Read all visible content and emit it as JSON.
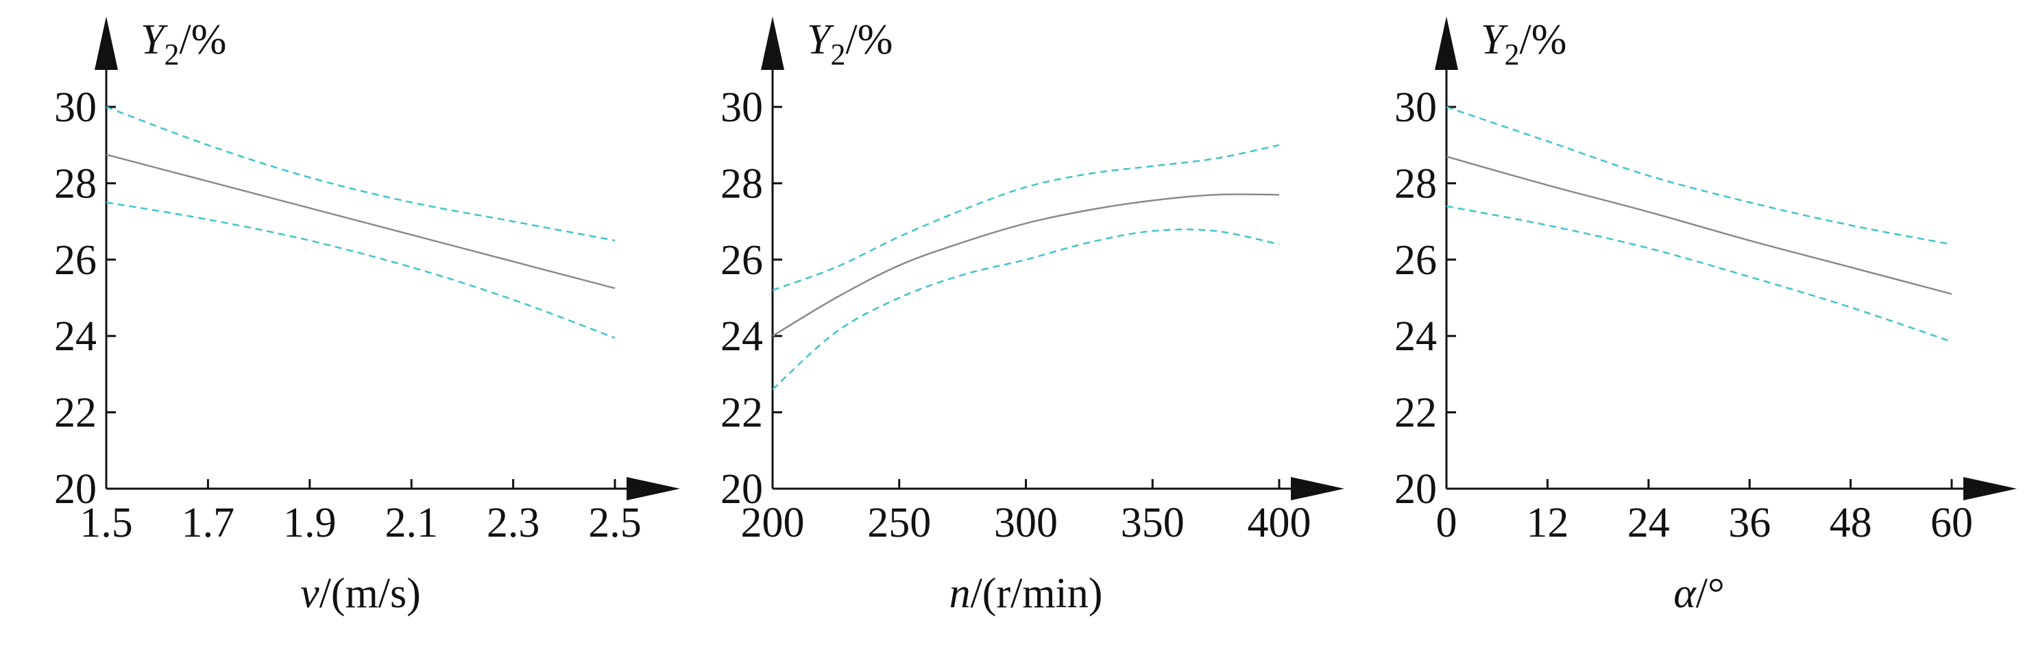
{
  "chart_data": [
    {
      "type": "line",
      "ylabel": "Y2/%",
      "ylabel_parts": {
        "var": "Y",
        "sub": "2",
        "rest": "/%"
      },
      "xlabel": "v/(m/s)",
      "xlabel_parts": {
        "var": "v",
        "rest": "/(m/s)"
      },
      "xlim": [
        1.5,
        2.5
      ],
      "ylim": [
        20,
        30
      ],
      "x_ticks": [
        1.5,
        1.7,
        1.9,
        2.1,
        2.3,
        2.5
      ],
      "x_tick_labels": [
        "1.5",
        "1.7",
        "1.9",
        "2.1",
        "2.3",
        "2.5"
      ],
      "y_ticks": [
        20,
        22,
        24,
        26,
        28,
        30
      ],
      "y_tick_labels": [
        "20",
        "22",
        "24",
        "26",
        "28",
        "30"
      ],
      "x": [
        1.5,
        1.7,
        1.9,
        2.1,
        2.3,
        2.5
      ],
      "series": [
        {
          "role": "mean",
          "color": "#8a8a8a",
          "values": [
            28.75,
            28.05,
            27.35,
            26.65,
            25.95,
            25.25
          ]
        },
        {
          "role": "upper",
          "color": "#3fc4cc",
          "values": [
            30.0,
            29.0,
            28.15,
            27.5,
            27.0,
            26.5
          ]
        },
        {
          "role": "lower",
          "color": "#3fc4cc",
          "values": [
            27.5,
            27.05,
            26.5,
            25.8,
            24.95,
            23.95
          ]
        }
      ]
    },
    {
      "type": "line",
      "ylabel": "Y2/%",
      "ylabel_parts": {
        "var": "Y",
        "sub": "2",
        "rest": "/%"
      },
      "xlabel": "n/(r/min)",
      "xlabel_parts": {
        "var": "n",
        "rest": "/(r/min)"
      },
      "xlim": [
        200,
        400
      ],
      "ylim": [
        20,
        30
      ],
      "x_ticks": [
        200,
        250,
        300,
        350,
        400
      ],
      "x_tick_labels": [
        "200",
        "250",
        "300",
        "350",
        "400"
      ],
      "y_ticks": [
        20,
        22,
        24,
        26,
        28,
        30
      ],
      "y_tick_labels": [
        "20",
        "22",
        "24",
        "26",
        "28",
        "30"
      ],
      "x": [
        200,
        225,
        250,
        275,
        300,
        325,
        350,
        375,
        400
      ],
      "series": [
        {
          "role": "mean",
          "color": "#8a8a8a",
          "values": [
            24.0,
            25.0,
            25.85,
            26.45,
            26.95,
            27.3,
            27.55,
            27.7,
            27.7
          ]
        },
        {
          "role": "upper",
          "color": "#3fc4cc",
          "values": [
            25.2,
            25.8,
            26.6,
            27.3,
            27.9,
            28.25,
            28.45,
            28.65,
            29.0
          ]
        },
        {
          "role": "lower",
          "color": "#3fc4cc",
          "values": [
            22.6,
            24.1,
            25.0,
            25.6,
            26.0,
            26.45,
            26.75,
            26.75,
            26.4
          ]
        }
      ]
    },
    {
      "type": "line",
      "ylabel": "Y2/%",
      "ylabel_parts": {
        "var": "Y",
        "sub": "2",
        "rest": "/%"
      },
      "xlabel": "α/°",
      "xlabel_parts": {
        "var": "α",
        "rest": "/°"
      },
      "xlim": [
        0,
        60
      ],
      "ylim": [
        20,
        30
      ],
      "x_ticks": [
        0,
        12,
        24,
        36,
        48,
        60
      ],
      "x_tick_labels": [
        "0",
        "12",
        "24",
        "36",
        "48",
        "60"
      ],
      "y_ticks": [
        20,
        22,
        24,
        26,
        28,
        30
      ],
      "y_tick_labels": [
        "20",
        "22",
        "24",
        "26",
        "28",
        "30"
      ],
      "x": [
        0,
        12,
        24,
        36,
        48,
        60
      ],
      "series": [
        {
          "role": "mean",
          "color": "#8a8a8a",
          "values": [
            28.7,
            27.95,
            27.25,
            26.5,
            25.8,
            25.1
          ]
        },
        {
          "role": "upper",
          "color": "#3fc4cc",
          "values": [
            30.0,
            29.1,
            28.2,
            27.5,
            26.9,
            26.4
          ]
        },
        {
          "role": "lower",
          "color": "#3fc4cc",
          "values": [
            27.4,
            26.9,
            26.3,
            25.55,
            24.75,
            23.85
          ]
        }
      ]
    }
  ]
}
